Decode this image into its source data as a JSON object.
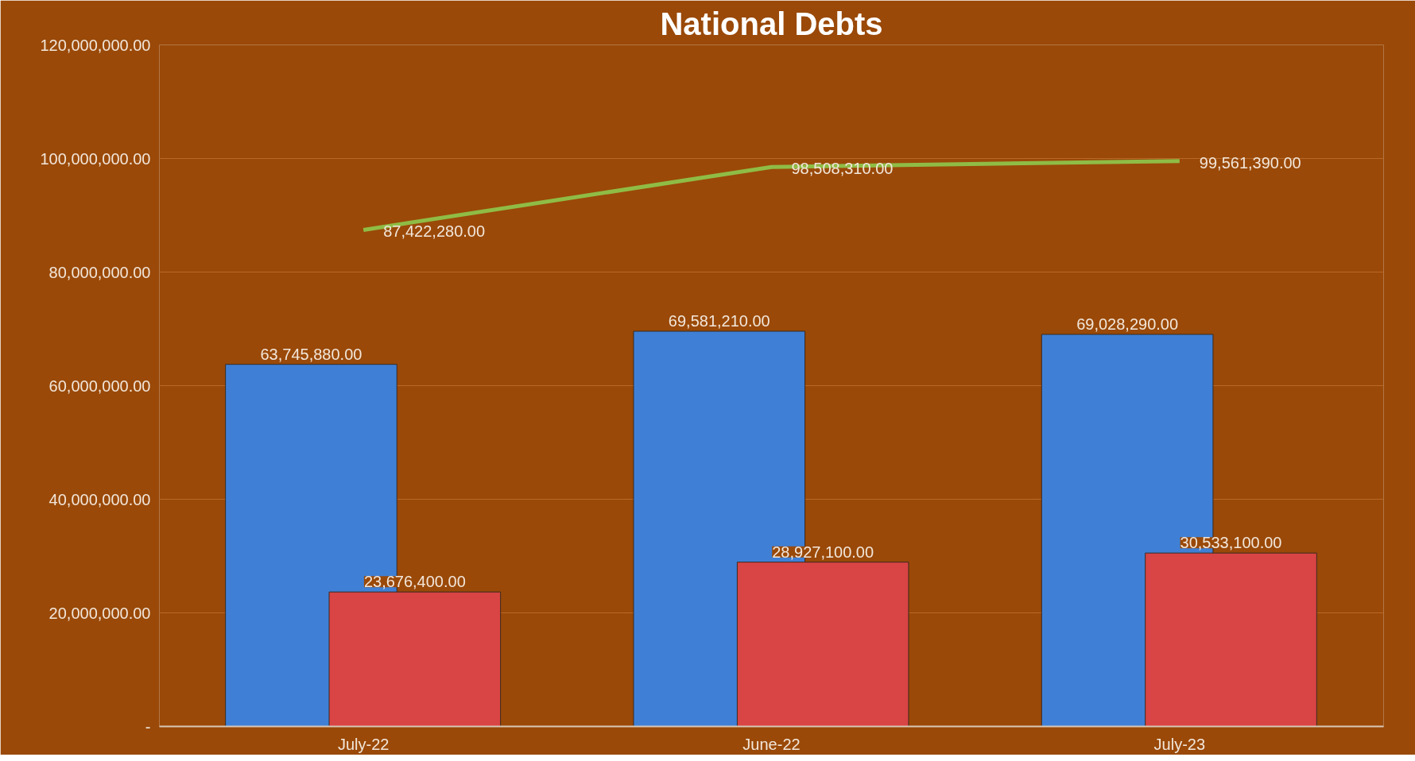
{
  "chart_data": {
    "type": "bar",
    "title": "National Debts",
    "categories": [
      "July-22",
      "June-22",
      "July-23"
    ],
    "series": [
      {
        "color": "#3f80d6",
        "values": [
          63745880,
          69581210,
          69028290
        ],
        "value_labels": [
          "63,745,880.00",
          "69,581,210.00",
          "69,028,290.00"
        ]
      },
      {
        "color": "#d94444",
        "values": [
          23676400,
          28927100,
          30533100
        ],
        "value_labels": [
          "23,676,400.00",
          "28,927,100.00",
          "30,533,100.00"
        ]
      },
      {
        "type": "line",
        "color": "#8fbc45",
        "values": [
          87422280,
          98508310,
          99561390
        ],
        "value_labels": [
          "87,422,280.00",
          "98,508,310.00",
          "99,561,390.00"
        ]
      }
    ],
    "ylim": [
      0,
      120000000
    ],
    "yticks": [
      {
        "value": 0,
        "label": "-"
      },
      {
        "value": 20000000,
        "label": "20,000,000.00"
      },
      {
        "value": 40000000,
        "label": "40,000,000.00"
      },
      {
        "value": 60000000,
        "label": "60,000,000.00"
      },
      {
        "value": 80000000,
        "label": "80,000,000.00"
      },
      {
        "value": 100000000,
        "label": "100,000,000.00"
      },
      {
        "value": 120000000,
        "label": "120,000,000.00"
      }
    ],
    "grid": "y"
  }
}
